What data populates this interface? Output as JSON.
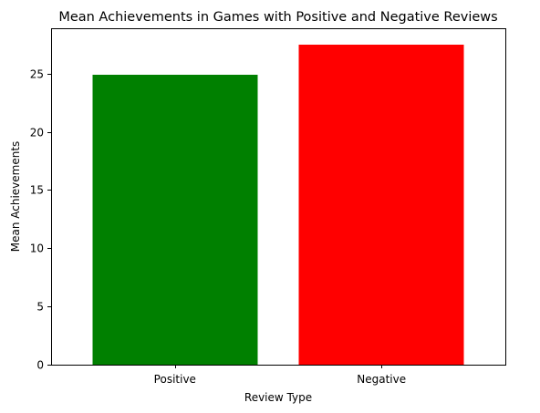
{
  "chart_data": {
    "type": "bar",
    "title": "Mean Achievements in Games with Positive and Negative Reviews",
    "xlabel": "Review Type",
    "ylabel": "Mean Achievements",
    "categories": [
      "Positive",
      "Negative"
    ],
    "values": [
      24.9,
      27.5
    ],
    "colors": [
      "#008000",
      "#ff0000"
    ],
    "ylim": [
      0,
      28.9
    ],
    "yticks": [
      0,
      5,
      10,
      15,
      20,
      25
    ],
    "grid": false,
    "legend": "none"
  }
}
